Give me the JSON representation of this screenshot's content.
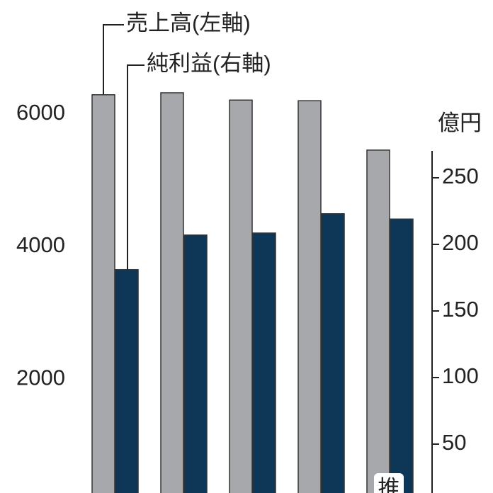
{
  "chart_data": {
    "type": "bar",
    "categories": [
      null,
      null,
      null,
      null,
      null
    ],
    "series": [
      {
        "name": "売上高(左軸)",
        "color": "#a7a8ac",
        "values": [
          6290,
          6320,
          6210,
          6200,
          5455
        ]
      },
      {
        "name": "純利益(右軸)",
        "color": "#0e3657",
        "axis": "y2",
        "values": [
          181,
          207,
          208.5,
          223,
          219
        ]
      }
    ],
    "ylim": [
      280,
      7720
    ],
    "yticks": [
      2000,
      4000,
      6000
    ],
    "y2lim": [
      13.3,
      383.5
    ],
    "y2ticks": [
      50,
      100,
      150,
      200,
      250
    ],
    "y2label": "億円",
    "annotation": "推",
    "grid": false
  }
}
